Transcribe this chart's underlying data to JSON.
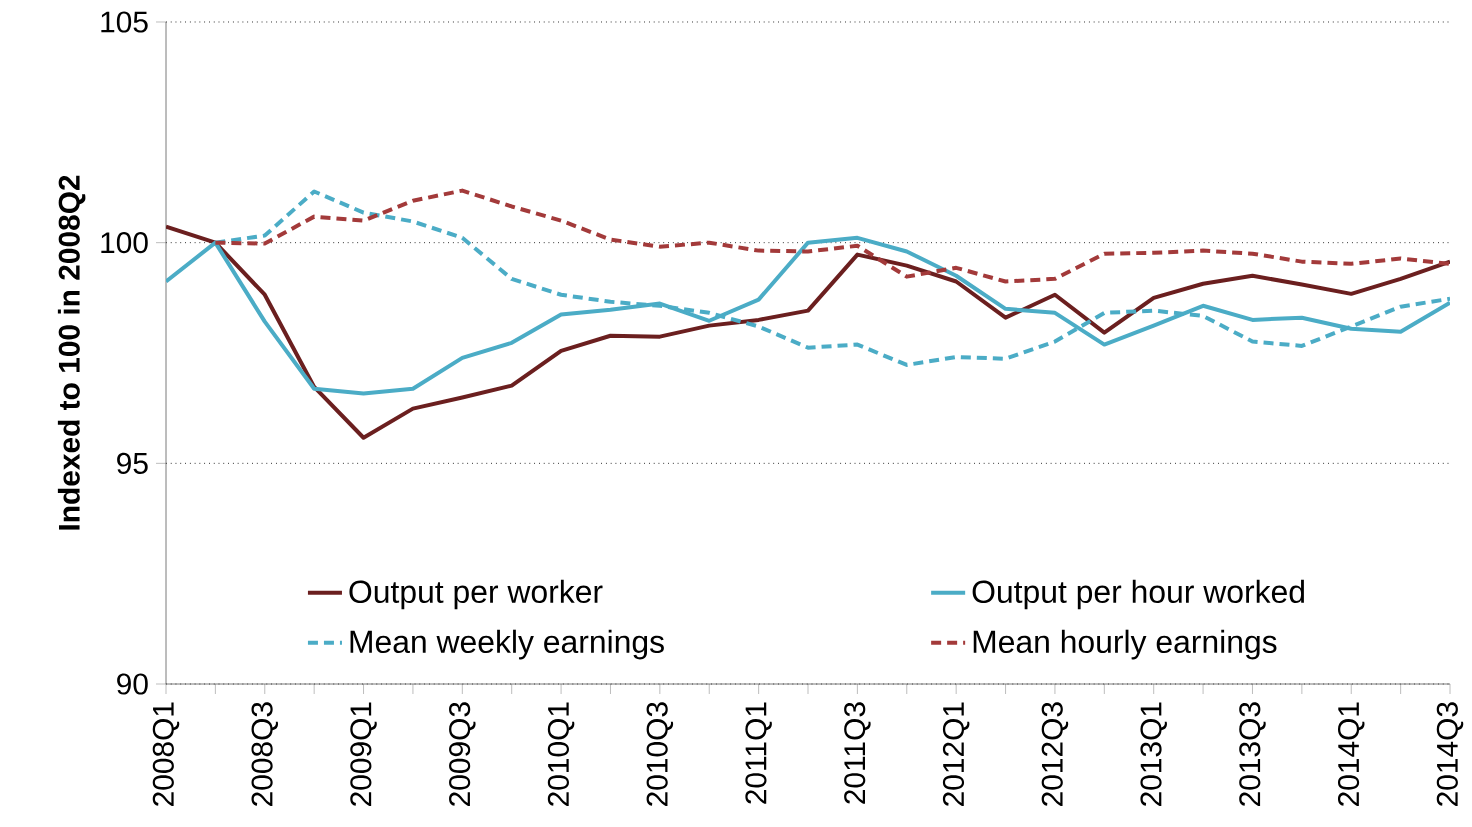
{
  "chart_data": {
    "type": "line",
    "ylabel": "Indexed to 100 in 2008Q2",
    "categories": [
      "2008Q1",
      null,
      "2008Q3",
      null,
      "2009Q1",
      null,
      "2009Q3",
      null,
      "2010Q1",
      null,
      "2010Q3",
      null,
      "2011Q1",
      null,
      "2011Q3",
      null,
      "2012Q1",
      null,
      "2012Q3",
      null,
      "2013Q1",
      null,
      "2013Q3",
      null,
      "2014Q1",
      null,
      "2014Q3"
    ],
    "series": [
      {
        "name": "Output per worker",
        "color": "#6b1f1f",
        "line_style": "solid",
        "values": [
          100.36,
          100,
          98.82,
          96.73,
          95.58,
          96.24,
          96.49,
          96.76,
          97.55,
          97.89,
          97.87,
          98.12,
          98.25,
          98.46,
          99.73,
          99.48,
          99.12,
          98.3,
          98.82,
          97.96,
          98.75,
          99.07,
          99.25,
          99.05,
          98.84,
          99.18,
          99.57
        ]
      },
      {
        "name": "Output per hour worked",
        "color": "#4bacc6",
        "line_style": "solid",
        "values": [
          99.12,
          100,
          98.21,
          96.69,
          96.58,
          96.69,
          97.39,
          97.73,
          98.37,
          98.48,
          98.62,
          98.23,
          98.71,
          100,
          100.11,
          99.8,
          99.25,
          98.5,
          98.41,
          97.69,
          98.12,
          98.57,
          98.25,
          98.3,
          98.05,
          97.98,
          98.64
        ]
      },
      {
        "name": "Mean weekly earnings",
        "color": "#4bacc6",
        "line_style": "dashed",
        "values": [
          null,
          100,
          100.16,
          101.16,
          100.68,
          100.48,
          100.11,
          99.18,
          98.82,
          98.66,
          98.57,
          98.41,
          98.1,
          97.62,
          97.69,
          97.23,
          97.41,
          97.37,
          97.76,
          98.41,
          98.46,
          98.34,
          97.76,
          97.66,
          98.1,
          98.55,
          98.73
        ]
      },
      {
        "name": "Mean hourly earnings",
        "color": "#a33a3a",
        "line_style": "dashed",
        "values": [
          null,
          100,
          99.98,
          100.59,
          100.5,
          100.95,
          101.18,
          100.82,
          100.5,
          100.07,
          99.91,
          100,
          99.82,
          99.8,
          99.93,
          99.23,
          99.43,
          99.12,
          99.18,
          99.75,
          99.77,
          99.82,
          99.75,
          99.57,
          99.52,
          99.64,
          99.52
        ]
      }
    ],
    "ylim": [
      90,
      105
    ],
    "yticks": [
      90,
      95,
      100,
      105
    ],
    "grid": "y",
    "legend": "bottom",
    "marker": "none"
  }
}
